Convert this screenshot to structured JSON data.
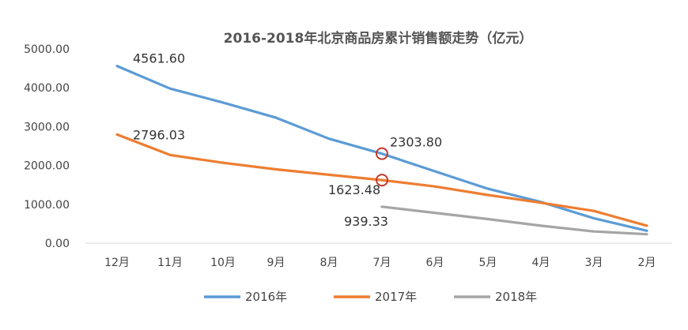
{
  "chart_data": {
    "type": "line",
    "title": "2016-2018年北京商品房累计销售额走势（亿元）",
    "categories": [
      "12月",
      "11月",
      "10月",
      "9月",
      "8月",
      "7月",
      "6月",
      "5月",
      "4月",
      "3月",
      "2月"
    ],
    "ylim": [
      0,
      5000
    ],
    "yticks": [
      "0.00",
      "1000.00",
      "2000.00",
      "3000.00",
      "4000.00",
      "5000.00"
    ],
    "grid": false,
    "legend_position": "bottom",
    "series": [
      {
        "name": "2016年",
        "color": "#5B9BD5",
        "values": [
          4561.6,
          3980,
          3620,
          3230,
          2690,
          2303.8,
          1850,
          1400,
          1060,
          640,
          320
        ]
      },
      {
        "name": "2017年",
        "color": "#ED7D31",
        "values": [
          2796.03,
          2270,
          2070,
          1900,
          1760,
          1623.48,
          1460,
          1240,
          1040,
          830,
          450
        ]
      },
      {
        "name": "2018年",
        "color": "#A5A5A5",
        "values": [
          null,
          null,
          null,
          null,
          null,
          939.33,
          780,
          620,
          450,
          300,
          230
        ]
      }
    ],
    "annotations": [
      {
        "series": 0,
        "index": 0,
        "text": "4561.60"
      },
      {
        "series": 1,
        "index": 0,
        "text": "2796.03"
      },
      {
        "series": 0,
        "index": 5,
        "text": "2303.80",
        "circled": true
      },
      {
        "series": 1,
        "index": 5,
        "text": "1623.48",
        "circled": true
      },
      {
        "series": 2,
        "index": 5,
        "text": "939.33"
      }
    ],
    "circle_color": "#C0392B"
  }
}
